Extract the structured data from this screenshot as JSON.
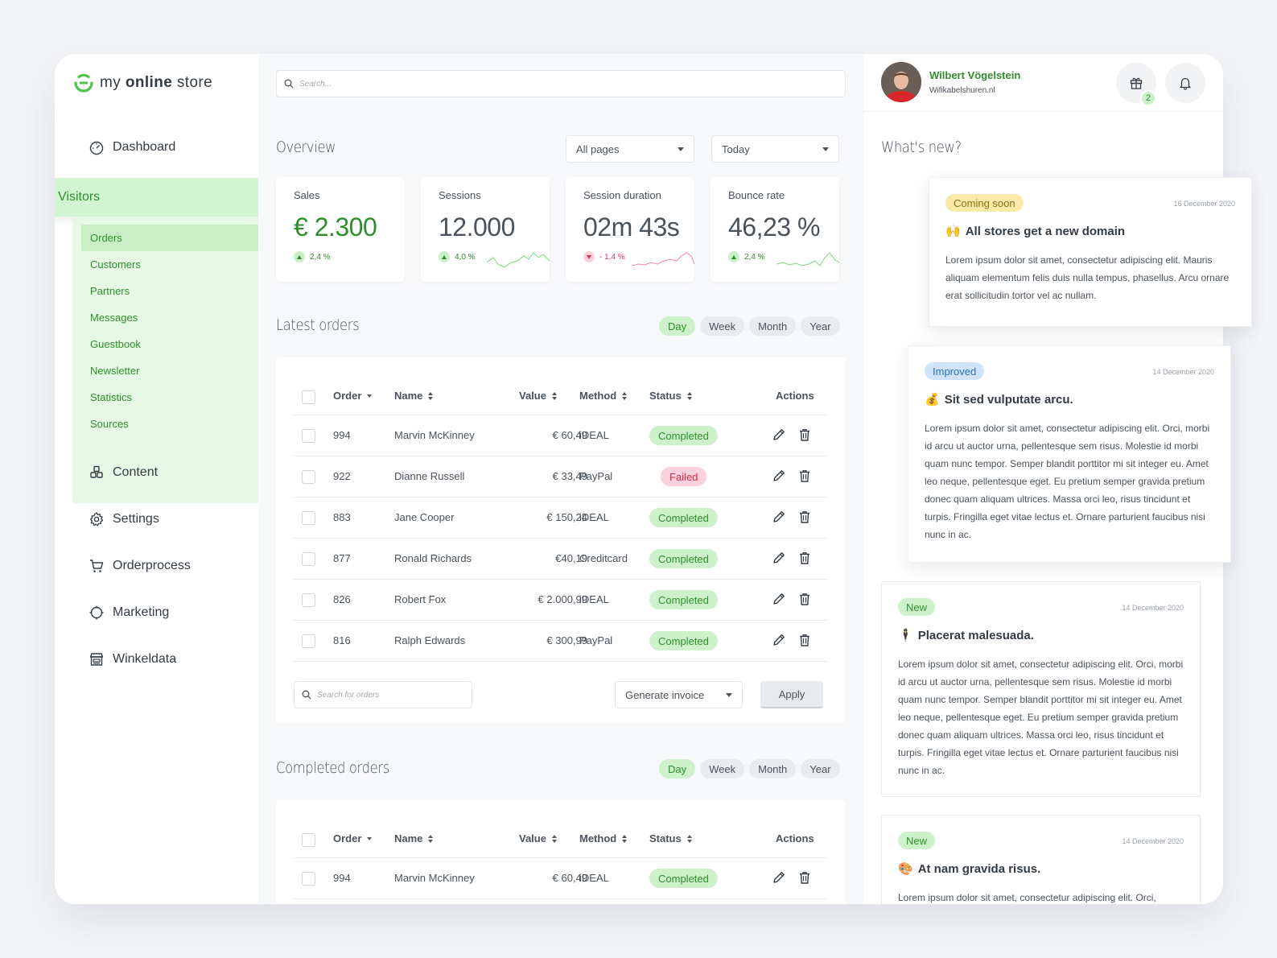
{
  "brand": {
    "name_light": "my",
    "name_bold": "online",
    "name_rest": "store"
  },
  "sidebar": {
    "items": [
      {
        "label": "Dashboard",
        "icon": "gauge-icon"
      },
      {
        "label": "Visitors",
        "icon": "users-icon"
      },
      {
        "label": "Content",
        "icon": "cubes-icon"
      },
      {
        "label": "Settings",
        "icon": "gear-icon"
      },
      {
        "label": "Orderprocess",
        "icon": "cart-icon"
      },
      {
        "label": "Marketing",
        "icon": "crosshair-icon"
      },
      {
        "label": "Winkeldata",
        "icon": "store-icon"
      }
    ],
    "subitems": [
      "Orders",
      "Customers",
      "Partners",
      "Messages",
      "Guestbook",
      "Newsletter",
      "Statistics",
      "Sources"
    ]
  },
  "search": {
    "placeholder": "Search..."
  },
  "overview": {
    "title": "Overview",
    "filter_pages": "All pages",
    "filter_date": "Today",
    "stats": [
      {
        "label": "Sales",
        "value": "€ 2.300",
        "change": "2,4 %",
        "direction": "up"
      },
      {
        "label": "Sessions",
        "value": "12.000",
        "change": "4,0 %",
        "direction": "up"
      },
      {
        "label": "Session duration",
        "value": "02m 43s",
        "change": "- 1,4 %",
        "direction": "down"
      },
      {
        "label": "Bounce rate",
        "value": "46,23 %",
        "change": "2,4 %",
        "direction": "up"
      }
    ]
  },
  "periods": [
    "Day",
    "Week",
    "Month",
    "Year"
  ],
  "latest": {
    "title": "Latest orders",
    "columns": {
      "order": "Order",
      "name": "Name",
      "value": "Value",
      "method": "Method",
      "status": "Status",
      "actions": "Actions"
    },
    "rows": [
      {
        "order": "994",
        "name": "Marvin McKinney",
        "value": "€ 60,49",
        "method": "iDEAL",
        "status": "Completed"
      },
      {
        "order": "922",
        "name": "Dianne Russell",
        "value": "€ 33,49",
        "method": "PayPal",
        "status": "Failed"
      },
      {
        "order": "883",
        "name": "Jane Cooper",
        "value": "€ 150,24",
        "method": "iDEAL",
        "status": "Completed"
      },
      {
        "order": "877",
        "name": "Ronald Richards",
        "value": "€40,19",
        "method": "Creditcard",
        "status": "Completed"
      },
      {
        "order": "826",
        "name": "Robert Fox",
        "value": "€ 2.000,99",
        "method": "iDEAL",
        "status": "Completed"
      },
      {
        "order": "816",
        "name": "Ralph Edwards",
        "value": "€ 300,99",
        "method": "PayPal",
        "status": "Completed"
      }
    ],
    "search_placeholder": "Search for orders",
    "bulk_action": "Generate invoice",
    "apply_label": "Apply"
  },
  "completed": {
    "title": "Completed orders",
    "rows": [
      {
        "order": "994",
        "name": "Marvin McKinney",
        "value": "€ 60,49",
        "method": "iDEAL",
        "status": "Completed"
      }
    ]
  },
  "user": {
    "name": "Wilbert Vögelstein",
    "site": "Wifikabelshuren.nl",
    "gift_count": "2"
  },
  "whatsnew": {
    "title": "What's new?",
    "items": [
      {
        "tag": "Coming soon",
        "date": "16 December 2020",
        "emoji": "🙌",
        "title": "All stores get a new domain",
        "body": "Lorem ipsum dolor sit amet, consectetur adipiscing elit. Mauris aliquam elementum felis duis nulla tempus, phasellus. Arcu ornare erat sollicitudin tortor vel ac nullam."
      },
      {
        "tag": "Improved",
        "date": "14 December 2020",
        "emoji": "💰",
        "title": "Sit sed vulputate arcu.",
        "body": "Lorem ipsum dolor sit amet, consectetur adipiscing elit. Orci, morbi id arcu ut auctor urna, pellentesque sem risus. Molestie id morbi quam nunc tempor. Semper blandit porttitor mi sit integer eu. Amet leo neque, pellentesque eget. Eu pretium semper gravida pretium donec quam aliquam ultrices. Massa orci leo, risus tincidunt et turpis. Fringilla eget vitae lectus et. Ornare parturient faucibus nisi nunc in ac."
      },
      {
        "tag": "New",
        "date": "14 December 2020",
        "emoji": "🕴",
        "title": "Placerat malesuada.",
        "body": "Lorem ipsum dolor sit amet, consectetur adipiscing elit. Orci, morbi id arcu ut auctor urna, pellentesque sem risus. Molestie id morbi quam nunc tempor. Semper blandit porttitor mi sit integer eu. Amet leo neque, pellentesque eget. Eu pretium semper gravida pretium donec quam aliquam ultrices. Massa orci leo, risus tincidunt et turpis. Fringilla eget vitae lectus et. Ornare parturient faucibus nisi nunc in ac."
      },
      {
        "tag": "New",
        "date": "14 December 2020",
        "emoji": "🎨",
        "title": "At nam gravida risus.",
        "body": "Lorem ipsum dolor sit amet, consectetur adipiscing elit. Orci,"
      }
    ]
  },
  "colors": {
    "accent": "#2f8f2c",
    "accent_light": "#d3f4d2",
    "danger": "#e0345d"
  }
}
